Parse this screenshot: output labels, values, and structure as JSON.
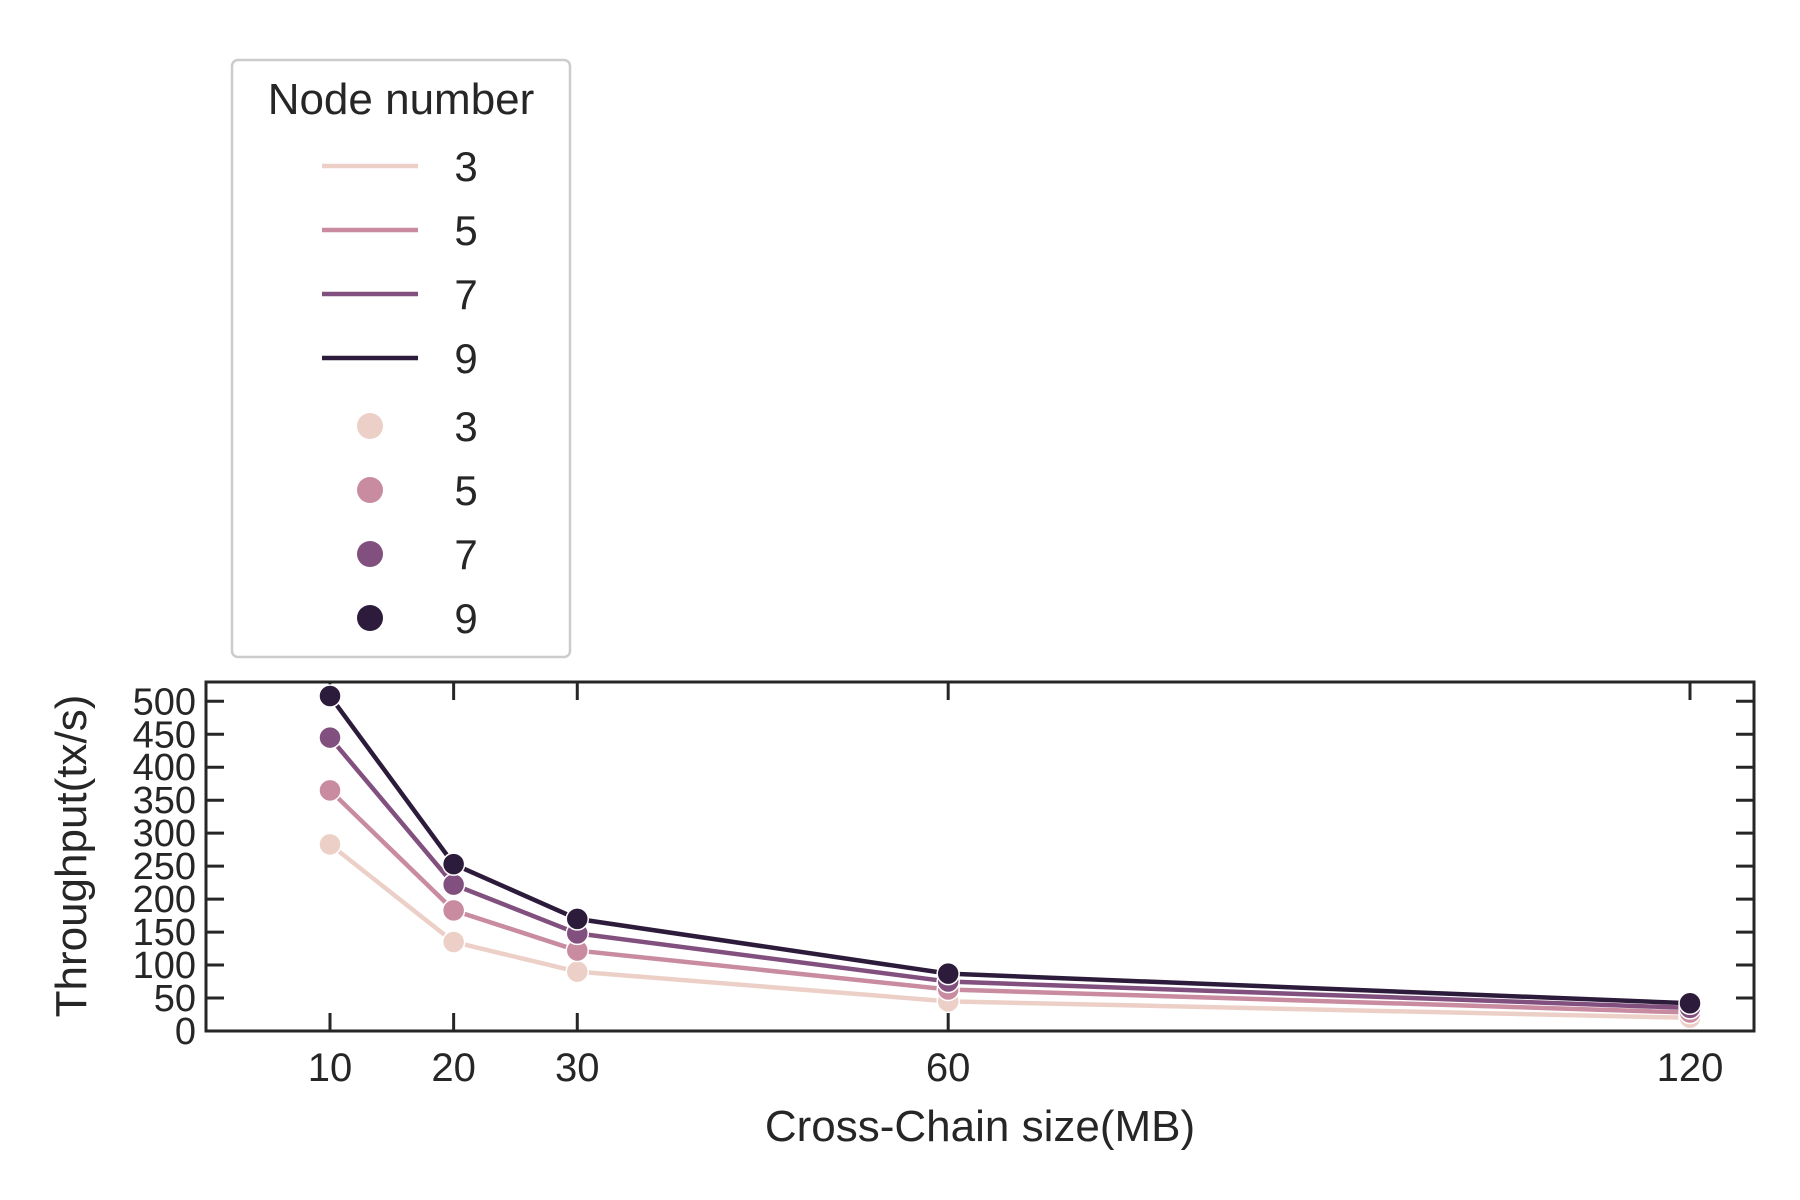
{
  "chart_data": {
    "type": "line",
    "xlabel": "Cross-Chain size(MB)",
    "ylabel": "Throughput(tx/s)",
    "x": [
      10,
      20,
      30,
      60,
      120
    ],
    "xticks": [
      "10",
      "20",
      "30",
      "60",
      "120"
    ],
    "xlim": [
      0,
      125
    ],
    "yticks": [
      "0",
      "50",
      "100",
      "150",
      "200",
      "250",
      "300",
      "350",
      "400",
      "450",
      "500"
    ],
    "ylim": [
      0,
      510
    ],
    "grid": false,
    "legend": {
      "title": "Node number",
      "placement": "upper-left, above plot",
      "line_entries": [
        "3",
        "5",
        "7",
        "9"
      ],
      "marker_entries": [
        "3",
        "5",
        "7",
        "9"
      ]
    },
    "series": [
      {
        "name": "3",
        "color": "#ecd0c8",
        "values": [
          283,
          135,
          90,
          45,
          20
        ]
      },
      {
        "name": "5",
        "color": "#c98ba0",
        "values": [
          365,
          183,
          122,
          63,
          28
        ]
      },
      {
        "name": "7",
        "color": "#82507e",
        "values": [
          445,
          222,
          148,
          75,
          35
        ]
      },
      {
        "name": "9",
        "color": "#2c1b3a",
        "values": [
          508,
          253,
          170,
          87,
          42
        ]
      }
    ]
  }
}
